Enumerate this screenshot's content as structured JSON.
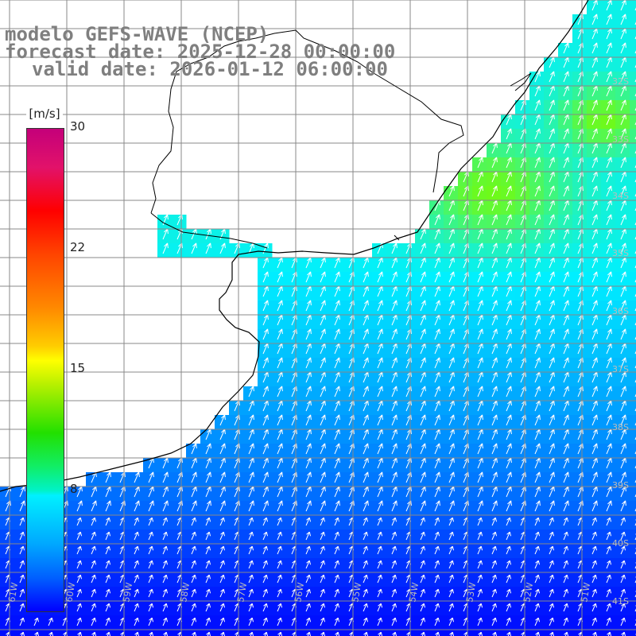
{
  "title": {
    "model": "modelo GEFS-WAVE (NCEP)",
    "forecast": "forecast date: 2025-12-28 00:00:00",
    "valid": "valid date: 2026-01-12 06:00:00"
  },
  "colorbar": {
    "unit": "[m/s]",
    "ticks": [
      "30",
      "22",
      "15",
      "8"
    ],
    "colors": [
      "#c4007a",
      "#ff0000",
      "#ff8800",
      "#ffff00",
      "#22e000",
      "#00f0ff",
      "#0060ff",
      "#0000ff"
    ]
  },
  "lat_labels": [
    "32S",
    "33S",
    "34S",
    "35S",
    "36S",
    "37S",
    "38S",
    "39S",
    "40S",
    "41S"
  ],
  "lon_labels": [
    "61W",
    "60W",
    "59W",
    "58W",
    "57W",
    "56W",
    "55W",
    "54W",
    "53W",
    "52W",
    "51W"
  ],
  "field": {
    "variable": "wind speed",
    "arrow_color": "#ffffff",
    "coast_color": "#000000",
    "grid_color": "#888888"
  }
}
